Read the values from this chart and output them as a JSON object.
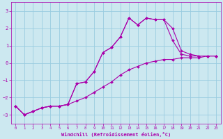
{
  "title": "",
  "xlabel": "Windchill (Refroidissement éolien,°C)",
  "ylabel": "",
  "bg_color": "#cce8f0",
  "line_color": "#aa00aa",
  "grid_color": "#99cce0",
  "xlim": [
    -0.5,
    23.5
  ],
  "ylim": [
    -3.5,
    3.5
  ],
  "yticks": [
    -3,
    -2,
    -1,
    0,
    1,
    2,
    3
  ],
  "xticks": [
    0,
    1,
    2,
    3,
    4,
    5,
    6,
    7,
    8,
    9,
    10,
    11,
    12,
    13,
    14,
    15,
    16,
    17,
    18,
    19,
    20,
    21,
    22,
    23
  ],
  "series": [
    {
      "x": [
        0,
        1,
        2,
        3,
        4,
        5,
        6,
        7,
        8,
        9,
        10,
        11,
        12,
        13,
        14,
        15,
        16,
        17,
        18,
        19,
        20,
        21,
        22,
        23
      ],
      "y": [
        -2.5,
        -3.0,
        -2.8,
        -2.6,
        -2.5,
        -2.5,
        -2.4,
        -1.2,
        -1.1,
        -0.5,
        0.6,
        0.9,
        1.5,
        2.6,
        2.2,
        2.6,
        2.5,
        2.5,
        2.0,
        0.7,
        0.5,
        0.4,
        0.4,
        0.4
      ]
    },
    {
      "x": [
        0,
        1,
        2,
        3,
        4,
        5,
        6,
        7,
        8,
        9,
        10,
        11,
        12,
        13,
        14,
        15,
        16,
        17,
        18,
        19,
        20,
        21,
        22,
        23
      ],
      "y": [
        -2.5,
        -3.0,
        -2.8,
        -2.6,
        -2.5,
        -2.5,
        -2.4,
        -1.2,
        -1.1,
        -0.5,
        0.6,
        0.9,
        1.5,
        2.6,
        2.2,
        2.6,
        2.5,
        2.5,
        1.3,
        0.5,
        0.4,
        0.4,
        0.4,
        0.4
      ]
    },
    {
      "x": [
        0,
        1,
        2,
        3,
        4,
        5,
        6,
        7,
        8,
        9,
        10,
        11,
        12,
        13,
        14,
        15,
        16,
        17,
        18,
        19,
        20,
        21,
        22,
        23
      ],
      "y": [
        -2.5,
        -3.0,
        -2.8,
        -2.6,
        -2.5,
        -2.5,
        -2.4,
        -2.2,
        -2.0,
        -1.7,
        -1.4,
        -1.1,
        -0.7,
        -0.4,
        -0.2,
        0.0,
        0.1,
        0.2,
        0.2,
        0.3,
        0.3,
        0.3,
        0.4,
        0.4
      ]
    }
  ]
}
